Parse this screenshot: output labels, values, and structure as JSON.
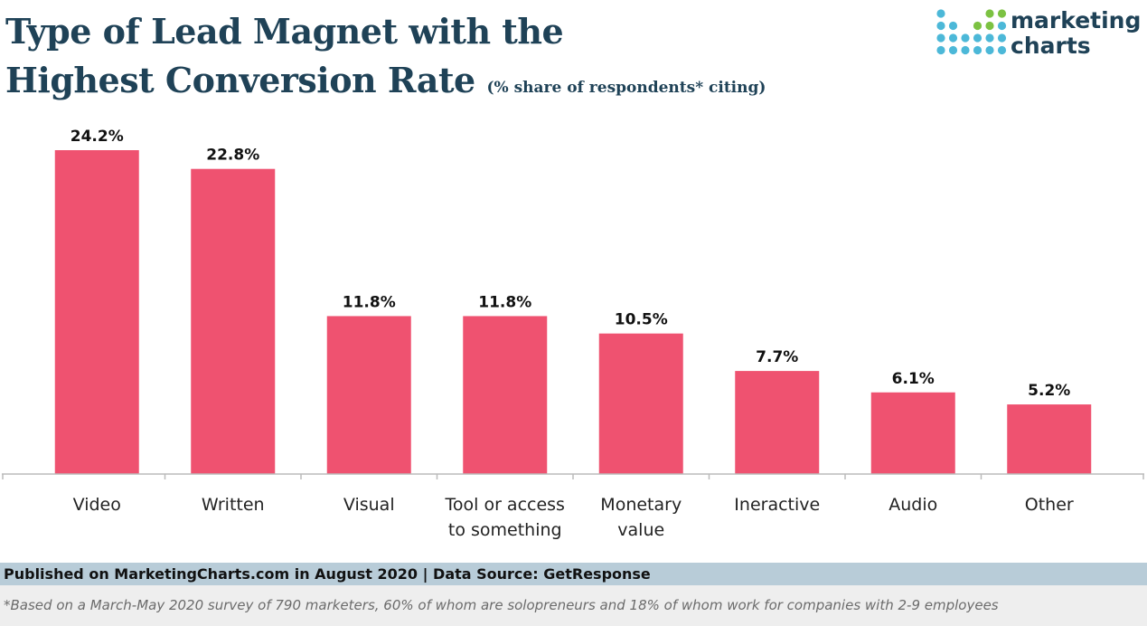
{
  "header": {
    "title_line1": "Type of Lead Magnet with the",
    "title_line2": "Highest Conversion Rate",
    "subtitle": "(% share of respondents* citing)"
  },
  "logo": {
    "line1": "marketing",
    "line2": "charts",
    "dot_colors": [
      "#4cb8d8",
      "#7cc242",
      "#1f4257"
    ]
  },
  "footer": {
    "source": "Published on MarketingCharts.com in August 2020 | Data Source: GetResponse",
    "footnote": "*Based on a March-May 2020 survey of 790 marketers, 60% of whom are solopreneurs and 18% of whom work for companies with 2-9 employees"
  },
  "chart_data": {
    "type": "bar",
    "categories": [
      [
        "Video"
      ],
      [
        "Written"
      ],
      [
        "Visual"
      ],
      [
        "Tool or access",
        "to something"
      ],
      [
        "Monetary",
        "value"
      ],
      [
        "Ineractive"
      ],
      [
        "Audio"
      ],
      [
        "Other"
      ]
    ],
    "values": [
      24.2,
      22.8,
      11.8,
      11.8,
      10.5,
      7.7,
      6.1,
      5.2
    ],
    "value_labels": [
      "24.2%",
      "22.8%",
      "11.8%",
      "11.8%",
      "10.5%",
      "7.7%",
      "6.1%",
      "5.2%"
    ],
    "ylim": [
      0,
      24.2
    ],
    "grid": false,
    "bar_color": "#ef5270"
  }
}
